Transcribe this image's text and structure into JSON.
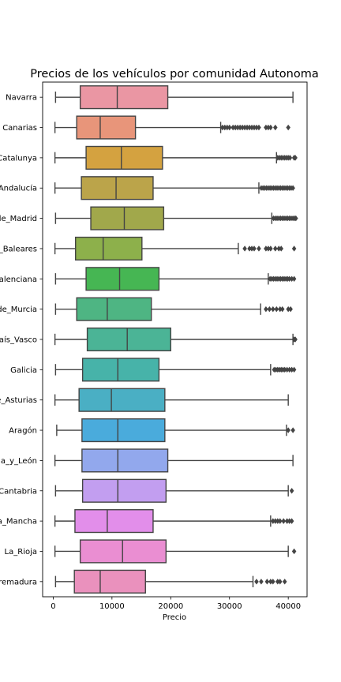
{
  "chart_data": {
    "type": "box",
    "orientation": "horizontal",
    "title": "Precios de los vehículos por comunidad Autonoma",
    "xlabel": "Precio",
    "ylabel": "",
    "xlim": [
      -1800,
      43200
    ],
    "xticks": [
      0,
      10000,
      20000,
      30000,
      40000
    ],
    "xtick_labels": [
      "0",
      "10000",
      "20000",
      "30000",
      "40000"
    ],
    "grid": false,
    "categories": [
      {
        "label": "Navarra",
        "color": "#ea96a3",
        "whisker_low": 400,
        "q1": 4600,
        "median": 10900,
        "q3": 19500,
        "whisker_high": 40800,
        "outliers": []
      },
      {
        "label": "Canarias",
        "color": "#e8957a",
        "whisker_low": 300,
        "q1": 4000,
        "median": 8000,
        "q3": 14000,
        "whisker_high": 28500,
        "outliers": [
          28800,
          29200,
          29600,
          30000,
          30600,
          31000,
          31400,
          31800,
          32200,
          32600,
          33000,
          33400,
          33800,
          34200,
          34600,
          35000,
          36200,
          36600,
          37000,
          37800,
          40000
        ]
      },
      {
        "label": "Catalunya",
        "color": "#d4a240",
        "whisker_low": 300,
        "q1": 5600,
        "median": 11600,
        "q3": 18600,
        "whisker_high": 38000,
        "outliers": [
          38200,
          38500,
          38800,
          39100,
          39400,
          39700,
          40000,
          40300,
          41000,
          41200
        ]
      },
      {
        "label": "Andalucía",
        "color": "#bba44a",
        "whisker_low": 300,
        "q1": 4800,
        "median": 10700,
        "q3": 17000,
        "whisker_high": 35000,
        "outliers": [
          35400,
          35700,
          36000,
          36300,
          36600,
          36900,
          37200,
          37500,
          37800,
          38100,
          38400,
          38700,
          39000,
          39300,
          39600,
          39900,
          40200,
          40500,
          40800
        ]
      },
      {
        "label": "Comunidad_de_Madrid",
        "color": "#a1a84b",
        "whisker_low": 400,
        "q1": 6400,
        "median": 12100,
        "q3": 18800,
        "whisker_high": 37200,
        "outliers": [
          37500,
          37800,
          38100,
          38400,
          38700,
          39000,
          39300,
          39600,
          39900,
          40200,
          40500,
          40800,
          41100,
          41300
        ]
      },
      {
        "label": "Islas_Baleares",
        "color": "#8db04b",
        "whisker_low": 300,
        "q1": 3800,
        "median": 8500,
        "q3": 15100,
        "whisker_high": 31500,
        "outliers": [
          32600,
          33400,
          33800,
          34200,
          35000,
          36200,
          36600,
          37000,
          37800,
          38400,
          38800,
          41000
        ]
      },
      {
        "label": "Comunidad_Valenciana",
        "color": "#46b653",
        "whisker_low": 400,
        "q1": 5600,
        "median": 11300,
        "q3": 18000,
        "whisker_high": 36600,
        "outliers": [
          36900,
          37200,
          37500,
          37800,
          38100,
          38400,
          38700,
          39000,
          39300,
          39600,
          39900,
          40200,
          40600,
          41000
        ]
      },
      {
        "label": "Región_de_Murcia",
        "color": "#4eb583",
        "whisker_low": 400,
        "q1": 4000,
        "median": 9200,
        "q3": 16700,
        "whisker_high": 35300,
        "outliers": [
          36200,
          36800,
          37400,
          38000,
          38600,
          39000,
          40000,
          40400
        ]
      },
      {
        "label": "País_Vasco",
        "color": "#4bb496",
        "whisker_low": 300,
        "q1": 5800,
        "median": 12600,
        "q3": 20000,
        "whisker_high": 40800,
        "outliers": [
          41000,
          41200
        ]
      },
      {
        "label": "Galicia",
        "color": "#47b3a9",
        "whisker_low": 400,
        "q1": 5000,
        "median": 11000,
        "q3": 18000,
        "whisker_high": 37000,
        "outliers": [
          37600,
          37900,
          38200,
          38500,
          38800,
          39100,
          39400,
          39800,
          40200,
          40600,
          41000
        ]
      },
      {
        "label": "Principado_de_Asturias",
        "color": "#4aafc4",
        "whisker_low": 300,
        "q1": 4400,
        "median": 9900,
        "q3": 19000,
        "whisker_high": 40000,
        "outliers": []
      },
      {
        "label": "Aragón",
        "color": "#4aabdc",
        "whisker_low": 600,
        "q1": 4900,
        "median": 11000,
        "q3": 19000,
        "whisker_high": 39700,
        "outliers": [
          40000,
          40800
        ]
      },
      {
        "label": "Castilla_y_León",
        "color": "#92a8ed",
        "whisker_low": 300,
        "q1": 4900,
        "median": 11000,
        "q3": 19500,
        "whisker_high": 40800,
        "outliers": []
      },
      {
        "label": "Cantabria",
        "color": "#c29ef0",
        "whisker_low": 400,
        "q1": 5000,
        "median": 11000,
        "q3": 19200,
        "whisker_high": 40000,
        "outliers": [
          40600
        ]
      },
      {
        "label": "Castilla-La_Mancha",
        "color": "#e28eea",
        "whisker_low": 300,
        "q1": 3700,
        "median": 9200,
        "q3": 17000,
        "whisker_high": 37000,
        "outliers": [
          37400,
          37800,
          38200,
          38600,
          39200,
          39800,
          40200,
          40600
        ]
      },
      {
        "label": "La_Rioja",
        "color": "#ea8ed2",
        "whisker_low": 300,
        "q1": 4600,
        "median": 11800,
        "q3": 19200,
        "whisker_high": 40000,
        "outliers": [
          41000
        ]
      },
      {
        "label": "Extremadura",
        "color": "#ea91bd",
        "whisker_low": 400,
        "q1": 3600,
        "median": 8000,
        "q3": 15700,
        "whisker_high": 34000,
        "outliers": [
          34600,
          35400,
          36400,
          37000,
          37400,
          38200,
          38600,
          39400
        ]
      }
    ]
  }
}
